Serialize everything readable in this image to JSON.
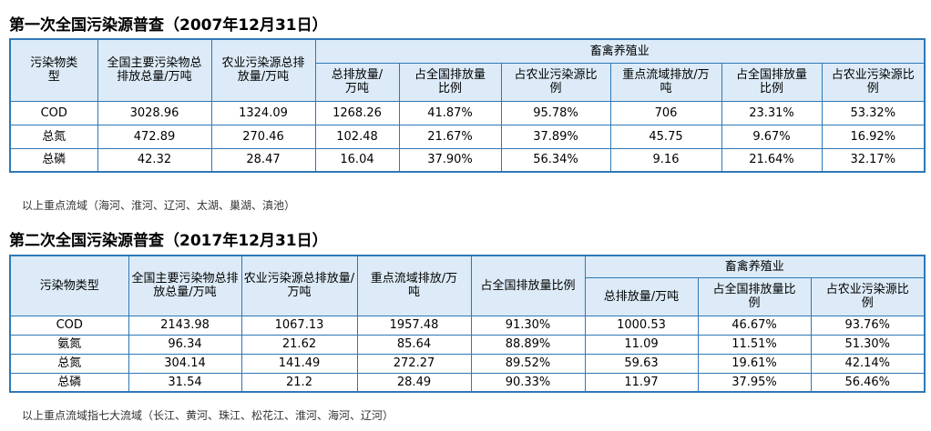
{
  "survey1": {
    "title": "第一次全国污染源普查（2007年12月31日）",
    "headers": {
      "pollutant_type": "污染物类型",
      "national_total": "全国主要污染物总排放总量/万吨",
      "agri_total": "农业污染源总排放量/万吨",
      "livestock_group": "畜禽养殖业",
      "livestock_cols": [
        "总排放量/万吨",
        "占全国排放量比例",
        "占农业污染源比例",
        "重点流域排放/万吨",
        "占全国排放量比例",
        "占农业污染源比例"
      ]
    },
    "rows": [
      {
        "name": "COD",
        "values": [
          "3028.96",
          "1324.09",
          "1268.26",
          "41.87%",
          "95.78%",
          "706",
          "23.31%",
          "53.32%"
        ]
      },
      {
        "name": "总氮",
        "values": [
          "472.89",
          "270.46",
          "102.48",
          "21.67%",
          "37.89%",
          "45.75",
          "9.67%",
          "16.92%"
        ]
      },
      {
        "name": "总磷",
        "values": [
          "42.32",
          "28.47",
          "16.04",
          "37.90%",
          "56.34%",
          "9.16",
          "21.64%",
          "32.17%"
        ]
      }
    ],
    "note": "以上重点流域（海河、淮河、辽河、太湖、巢湖、滇池）"
  },
  "survey2": {
    "title": "第二次全国污染源普查（2017年12月31日）",
    "headers": {
      "pollutant_type": "污染物类型",
      "national_total": "全国主要污染物总排放总量/万吨",
      "agri_total": "农业污染源总排放量/万吨",
      "basin_total": "重点流域排放/万吨",
      "basin_share": "占全国排放量比例",
      "livestock_group": "畜禽养殖业",
      "livestock_cols": [
        "总排放量/万吨",
        "占全国排放量比例",
        "占农业污染源比例"
      ]
    },
    "rows": [
      {
        "name": "COD",
        "values": [
          "2143.98",
          "1067.13",
          "1957.48",
          "91.30%",
          "1000.53",
          "46.67%",
          "93.76%"
        ]
      },
      {
        "name": "氨氮",
        "values": [
          "96.34",
          "21.62",
          "85.64",
          "88.89%",
          "11.09",
          "11.51%",
          "51.30%"
        ]
      },
      {
        "name": "总氮",
        "values": [
          "304.14",
          "141.49",
          "272.27",
          "89.52%",
          "59.63",
          "19.61%",
          "42.14%"
        ]
      },
      {
        "name": "总磷",
        "values": [
          "31.54",
          "21.2",
          "28.49",
          "90.33%",
          "11.97",
          "37.95%",
          "56.46%"
        ]
      }
    ],
    "note": "以上重点流域指七大流域（长江、黄河、珠江、松花江、淮河、海河、辽河）"
  },
  "colors": {
    "border": "#2f78b7",
    "header_bg": "#dcebf7"
  }
}
